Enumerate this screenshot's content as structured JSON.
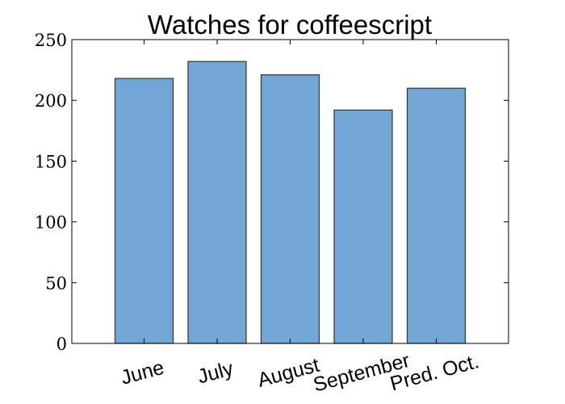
{
  "chart_data": {
    "type": "bar",
    "title": "Watches for coffeescript",
    "xlabel": "",
    "ylabel": "",
    "categories": [
      "June",
      "July",
      "August",
      "September",
      "Pred. Oct."
    ],
    "values": [
      218,
      232,
      221,
      192,
      210
    ],
    "ylim": [
      0,
      250
    ],
    "yticks": [
      "0",
      "50",
      "100",
      "150",
      "200",
      "250"
    ],
    "grid": false,
    "legend": "none",
    "colors": {
      "bar_fill": "#72a6d4",
      "bar_edge": "#333333",
      "axis": "#000000"
    }
  }
}
